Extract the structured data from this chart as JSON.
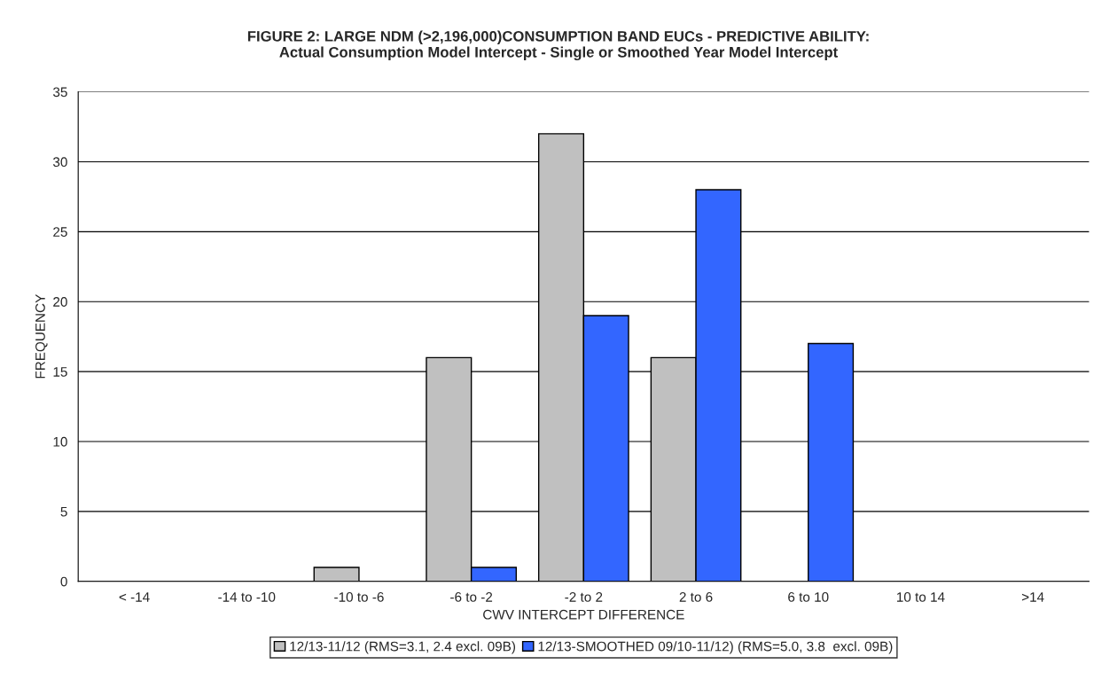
{
  "chart_data": {
    "type": "bar",
    "title": "FIGURE 2: LARGE NDM (>2,196,000)CONSUMPTION BAND EUCs - PREDICTIVE ABILITY:\nActual Consumption Model Intercept - Single or Smoothed Year Model Intercept",
    "xlabel": "CWV INTERCEPT DIFFERENCE",
    "ylabel": "FREQUENCY",
    "categories": [
      "< -14",
      "-14 to -10",
      "-10 to -6",
      "-6 to -2",
      "-2 to 2",
      "2 to 6",
      "6 to 10",
      "10 to 14",
      ">14"
    ],
    "series": [
      {
        "name": "12/13-11/12 (RMS=3.1, 2.4 excl. 09B)",
        "color": "#c0c0c0",
        "values": [
          0,
          0,
          1,
          16,
          32,
          16,
          0,
          0,
          0
        ]
      },
      {
        "name": "12/13-SMOOTHED 09/10-11/12) (RMS=5.0, 3.8  excl. 09B)",
        "color": "#3366ff",
        "values": [
          0,
          0,
          0,
          1,
          19,
          28,
          17,
          0,
          0
        ]
      }
    ],
    "ylim": [
      0,
      35
    ],
    "yticks": [
      0,
      5,
      10,
      15,
      20,
      25,
      30,
      35
    ],
    "grid": "y",
    "legend": "bottom"
  }
}
